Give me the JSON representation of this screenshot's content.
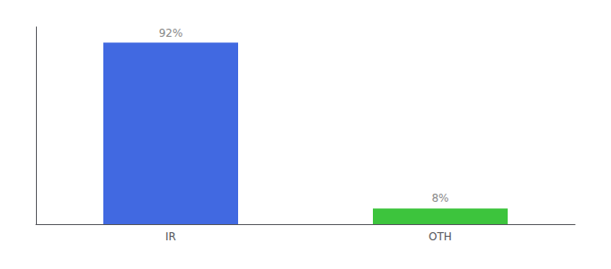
{
  "chart_data": {
    "type": "bar",
    "categories": [
      "IR",
      "OTH"
    ],
    "values": [
      92,
      8
    ],
    "value_labels": [
      "92%",
      "8%"
    ],
    "data_labels": true,
    "colors": [
      "#4169e1",
      "#3dc43d"
    ],
    "ylim": [
      0,
      100
    ],
    "grid": false,
    "tick_labels": "x"
  }
}
